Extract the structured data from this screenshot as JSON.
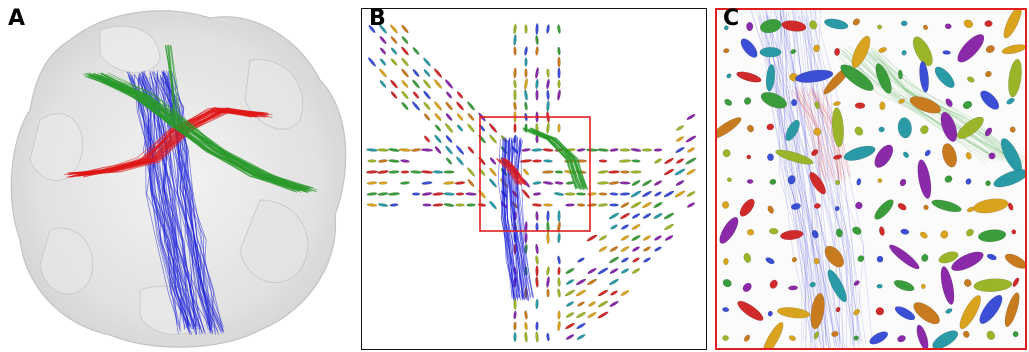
{
  "figure": {
    "panels": [
      {
        "id": "A",
        "label": "A"
      },
      {
        "id": "B",
        "label": "B"
      },
      {
        "id": "C",
        "label": "C"
      }
    ],
    "colors": {
      "blue_tract": "#1e22d8",
      "red_tract": "#e01818",
      "green_tract": "#2a9a2a",
      "roi_frame": "#e02020",
      "brain_surface": "#d8d8d8"
    },
    "icons": {
      "panel_a": "brain-surface-with-fiber-tracts",
      "panel_b": "tensor-glyph-field-with-tracts",
      "panel_c": "zoomed-tensor-glyph-field"
    }
  }
}
